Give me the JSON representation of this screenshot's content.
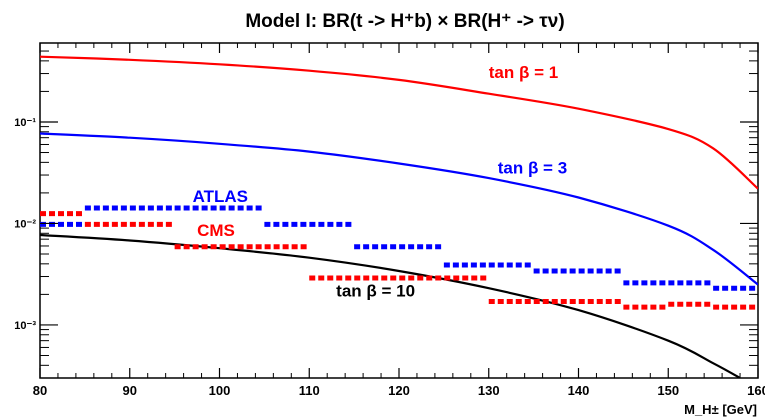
{
  "chart_data": {
    "type": "line",
    "title": "Model I: BR(t -> H⁺b) × BR(H⁺ -> τν)",
    "xlabel": "M_H± [GeV]",
    "ylabel": "",
    "xlim": [
      80,
      160
    ],
    "ylim": [
      0.0003,
      0.6
    ],
    "yscale": "log",
    "grid": false,
    "x_ticks": [
      80,
      90,
      100,
      110,
      120,
      130,
      140,
      150,
      160
    ],
    "x_tick_labels": [
      "80",
      "90",
      "100",
      "110",
      "120",
      "130",
      "140",
      "150",
      "160"
    ],
    "y_ticks": [
      0.001,
      0.01,
      0.1
    ],
    "y_tick_labels": [
      "10⁻³",
      "10⁻²",
      "10⁻¹"
    ],
    "series": [
      {
        "name": "tan β = 1",
        "color": "#ff0000",
        "style": "solid",
        "x": [
          80,
          90,
          100,
          110,
          120,
          130,
          140,
          150,
          155,
          160
        ],
        "y": [
          0.44,
          0.41,
          0.37,
          0.32,
          0.26,
          0.19,
          0.135,
          0.085,
          0.055,
          0.022
        ]
      },
      {
        "name": "tan β = 3",
        "color": "#0000ff",
        "style": "solid",
        "x": [
          80,
          90,
          100,
          110,
          120,
          130,
          140,
          150,
          155,
          160
        ],
        "y": [
          0.077,
          0.07,
          0.061,
          0.051,
          0.039,
          0.028,
          0.018,
          0.0095,
          0.0055,
          0.0025
        ]
      },
      {
        "name": "tan β = 10",
        "color": "#000000",
        "style": "solid",
        "x": [
          80,
          90,
          100,
          110,
          120,
          130,
          140,
          150,
          155,
          158
        ],
        "y": [
          0.0077,
          0.0068,
          0.0057,
          0.0046,
          0.0034,
          0.0023,
          0.0014,
          0.0007,
          0.00042,
          0.0003
        ]
      },
      {
        "name": "ATLAS",
        "color": "#0000ff",
        "style": "dashed-steps",
        "x0": [
          80,
          85,
          95,
          105,
          115,
          125,
          130,
          135,
          145,
          155
        ],
        "x1": [
          85,
          95,
          105,
          115,
          125,
          130,
          135,
          145,
          155,
          160
        ],
        "y": [
          0.0098,
          0.0142,
          0.0142,
          0.0098,
          0.0059,
          0.0039,
          0.0039,
          0.0034,
          0.0026,
          0.0023
        ]
      },
      {
        "name": "CMS",
        "color": "#ff0000",
        "style": "dashed-steps",
        "x0": [
          80,
          85,
          95,
          110,
          130,
          145,
          150,
          155
        ],
        "x1": [
          85,
          95,
          110,
          130,
          145,
          150,
          155,
          160
        ],
        "y": [
          0.0125,
          0.0098,
          0.0059,
          0.0029,
          0.0017,
          0.0015,
          0.0016,
          0.0015
        ]
      }
    ],
    "annotations": [
      {
        "text": "tan β = 1",
        "color": "#ff0000",
        "x": 130,
        "y": 0.27
      },
      {
        "text": "tan β = 3",
        "color": "#0000ff",
        "x": 131,
        "y": 0.031
      },
      {
        "text": "ATLAS",
        "color": "#0000ff",
        "x": 97,
        "y": 0.0163
      },
      {
        "text": "CMS",
        "color": "#ff0000",
        "x": 97.5,
        "y": 0.0075
      },
      {
        "text": "tan β = 10",
        "color": "#000000",
        "x": 113,
        "y": 0.0019
      }
    ]
  }
}
